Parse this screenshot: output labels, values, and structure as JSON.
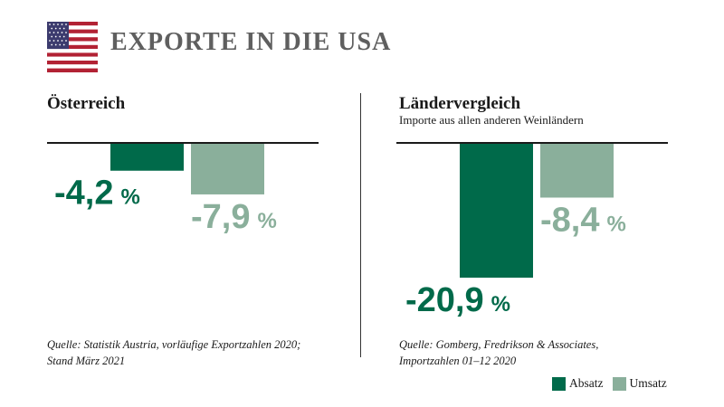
{
  "title": "EXPORTE IN DIE USA",
  "flag_icon": "us-flag-icon",
  "colors": {
    "absatz": "#006a4a",
    "umsatz": "#8aaf9b",
    "axis": "#1a1a1a",
    "title": "#5f5f5f"
  },
  "legend": [
    {
      "label": "Absatz",
      "color": "#006a4a"
    },
    {
      "label": "Umsatz",
      "color": "#8aaf9b"
    }
  ],
  "panels": [
    {
      "title": "Österreich",
      "subtitle": "",
      "source_line1": "Quelle: Statistik Austria, vorläufige Exportzahlen 2020;",
      "source_line2": "Stand März 2021"
    },
    {
      "title": "Ländervergleich",
      "subtitle": "Importe aus allen anderen Weinländern",
      "source_line1": "Quelle: Gomberg, Fredrikson & Associates,",
      "source_line2": "Importzahlen 01–12 2020"
    }
  ],
  "chart_data": [
    {
      "type": "bar",
      "title": "Österreich",
      "categories": [
        "Absatz",
        "Umsatz"
      ],
      "values": [
        -4.2,
        -7.9
      ],
      "labels": [
        "-4,2",
        "-7,9"
      ],
      "unit": "%",
      "ylim": [
        -20.9,
        0
      ],
      "grid": false,
      "legend": "bottom-right"
    },
    {
      "type": "bar",
      "title": "Ländervergleich",
      "categories": [
        "Absatz",
        "Umsatz"
      ],
      "values": [
        -20.9,
        -8.4
      ],
      "labels": [
        "-20,9",
        "-8,4"
      ],
      "unit": "%",
      "ylim": [
        -20.9,
        0
      ],
      "grid": false,
      "legend": "bottom-right"
    }
  ]
}
